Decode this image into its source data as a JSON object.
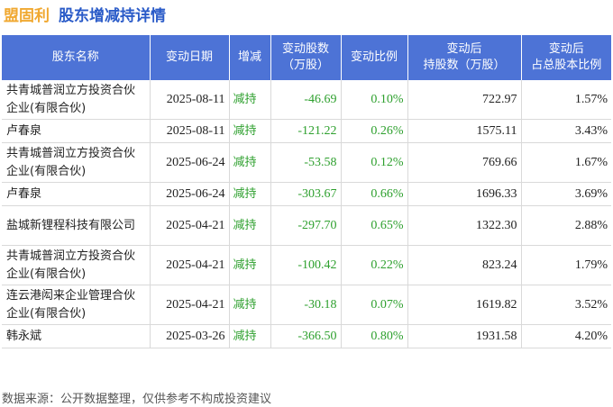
{
  "header": {
    "company": "盟固利",
    "subtitle": "股东增减持详情"
  },
  "table": {
    "columns": [
      "股东名称",
      "变动日期",
      "增减",
      "变动股数\n（万股）",
      "变动比例",
      "变动后\n持股数（万股）",
      "变动后\n占总股本比例"
    ],
    "rows": [
      {
        "name": "共青城普润立方投资合伙企业(有限合伙)",
        "date": "2025-08-11",
        "dir": "减持",
        "change": "-46.69",
        "ratio": "0.10%",
        "after": "722.97",
        "pct": "1.57%"
      },
      {
        "name": "卢春泉",
        "date": "2025-08-11",
        "dir": "减持",
        "change": "-121.22",
        "ratio": "0.26%",
        "after": "1575.11",
        "pct": "3.43%"
      },
      {
        "name": "共青城普润立方投资合伙企业(有限合伙)",
        "date": "2025-06-24",
        "dir": "减持",
        "change": "-53.58",
        "ratio": "0.12%",
        "after": "769.66",
        "pct": "1.67%"
      },
      {
        "name": "卢春泉",
        "date": "2025-06-24",
        "dir": "减持",
        "change": "-303.67",
        "ratio": "0.66%",
        "after": "1696.33",
        "pct": "3.69%"
      },
      {
        "name": "盐城新锂程科技有限公司",
        "date": "2025-04-21",
        "dir": "减持",
        "change": "-297.70",
        "ratio": "0.65%",
        "after": "1322.30",
        "pct": "2.88%"
      },
      {
        "name": "共青城普润立方投资合伙企业(有限合伙)",
        "date": "2025-04-21",
        "dir": "减持",
        "change": "-100.42",
        "ratio": "0.22%",
        "after": "823.24",
        "pct": "1.79%"
      },
      {
        "name": "连云港闳来企业管理合伙企业(有限合伙)",
        "date": "2025-04-21",
        "dir": "减持",
        "change": "-30.18",
        "ratio": "0.07%",
        "after": "1619.82",
        "pct": "3.52%"
      },
      {
        "name": "韩永斌",
        "date": "2025-03-26",
        "dir": "减持",
        "change": "-366.50",
        "ratio": "0.80%",
        "after": "1931.58",
        "pct": "4.20%"
      }
    ]
  },
  "footer": {
    "source": "数据来源：公开数据整理，仅供参考不构成投资建议"
  },
  "colors": {
    "header_bg": "#4d73d6",
    "decrease": "#2ea02e",
    "company": "#f0a830",
    "subtitle": "#2a5bc8"
  }
}
